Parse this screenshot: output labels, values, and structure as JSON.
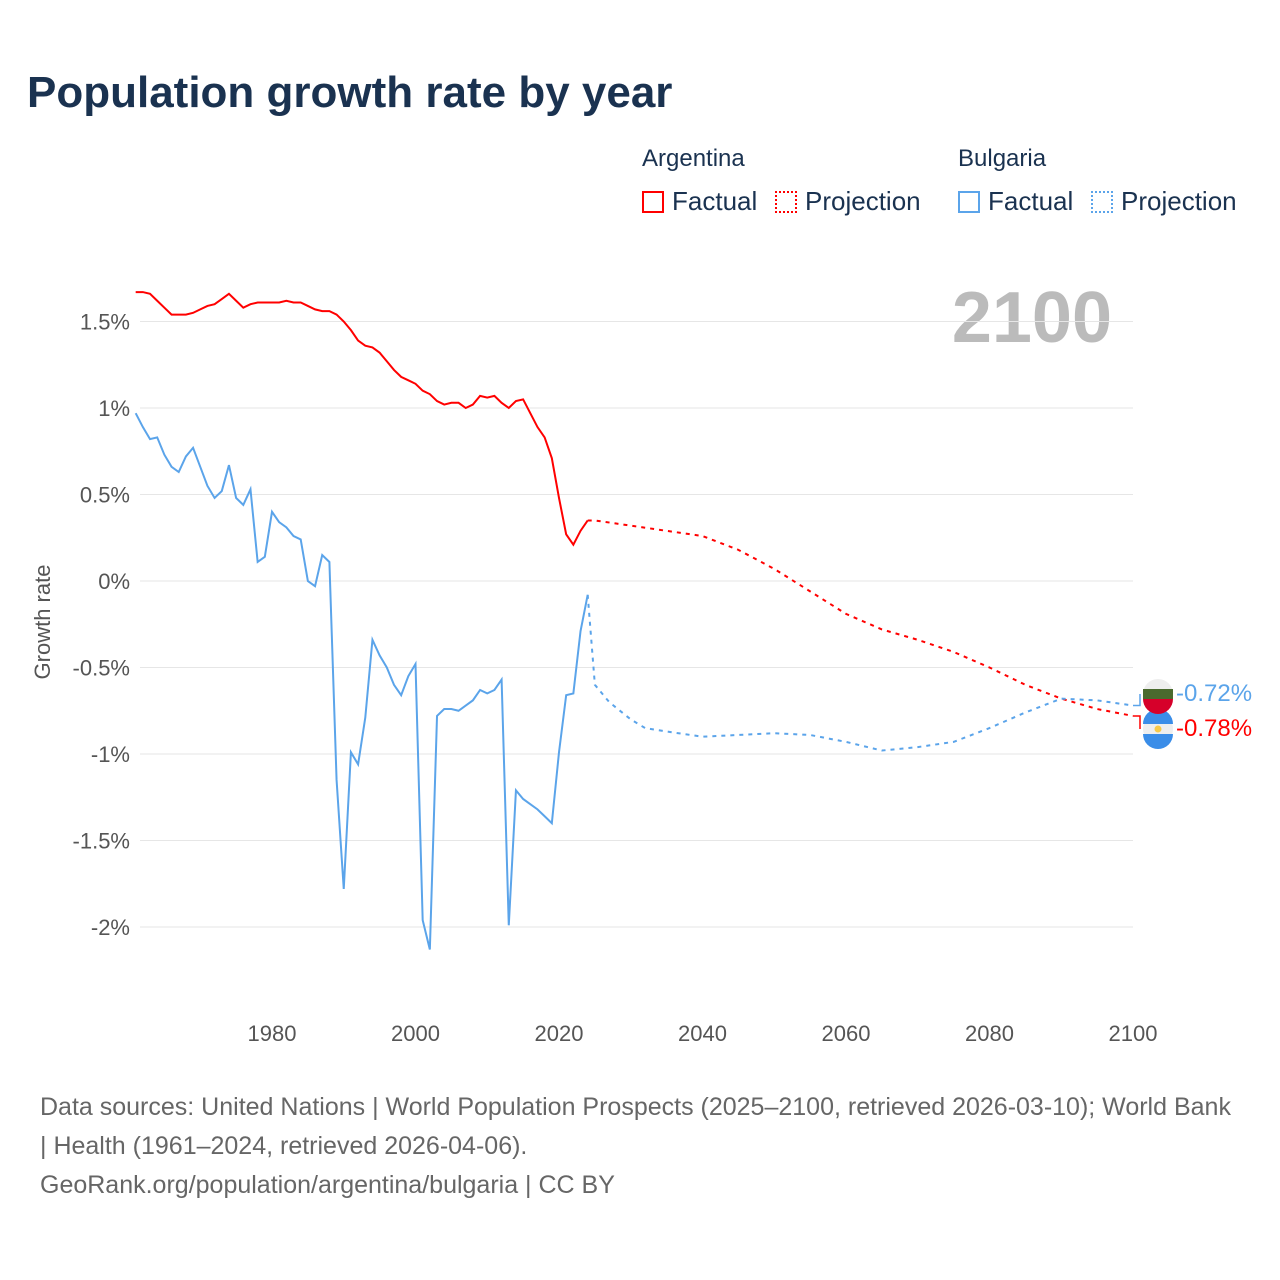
{
  "chart_data": {
    "type": "line",
    "title": "Population growth rate by year",
    "ylabel": "Growth rate",
    "xlabel": "",
    "xlim": [
      1961,
      2100
    ],
    "ylim": [
      -2.3,
      1.7
    ],
    "x_ticks": [
      {
        "v": 1980,
        "label": "1980"
      },
      {
        "v": 2000,
        "label": "2000"
      },
      {
        "v": 2020,
        "label": "2020"
      },
      {
        "v": 2040,
        "label": "2040"
      },
      {
        "v": 2060,
        "label": "2060"
      },
      {
        "v": 2080,
        "label": "2080"
      },
      {
        "v": 2100,
        "label": "2100"
      }
    ],
    "y_ticks": [
      {
        "v": 1.5,
        "label": "1.5%"
      },
      {
        "v": 1,
        "label": "1%"
      },
      {
        "v": 0.5,
        "label": "0.5%"
      },
      {
        "v": 0,
        "label": "0%"
      },
      {
        "v": -0.5,
        "label": "-0.5%"
      },
      {
        "v": -1,
        "label": "-1%"
      },
      {
        "v": -1.5,
        "label": "-1.5%"
      },
      {
        "v": -2,
        "label": "-2%"
      }
    ],
    "grid": true,
    "year_label": "2100",
    "legend": {
      "placement": "top-right",
      "groups": [
        {
          "name": "Argentina",
          "items": [
            "Factual",
            "Projection"
          ]
        },
        {
          "name": "Bulgaria",
          "items": [
            "Factual",
            "Projection"
          ]
        }
      ]
    },
    "series": [
      {
        "name": "Argentina",
        "color": "#ff0000",
        "end_label": "-0.78%",
        "factual": {
          "start": 1961,
          "values": [
            1.67,
            1.67,
            1.66,
            1.62,
            1.58,
            1.54,
            1.54,
            1.54,
            1.55,
            1.57,
            1.59,
            1.6,
            1.63,
            1.66,
            1.62,
            1.58,
            1.6,
            1.61,
            1.61,
            1.61,
            1.61,
            1.62,
            1.61,
            1.61,
            1.59,
            1.57,
            1.56,
            1.56,
            1.54,
            1.5,
            1.45,
            1.39,
            1.36,
            1.35,
            1.32,
            1.27,
            1.22,
            1.18,
            1.16,
            1.14,
            1.1,
            1.08,
            1.04,
            1.02,
            1.03,
            1.03,
            1.0,
            1.02,
            1.07,
            1.06,
            1.07,
            1.03,
            1.0,
            1.04,
            1.05,
            0.97,
            0.89,
            0.83,
            0.71,
            0.48,
            0.27,
            0.21,
            0.29,
            0.35
          ]
        },
        "projection": {
          "x": [
            2024,
            2025,
            2030,
            2035,
            2040,
            2045,
            2050,
            2055,
            2060,
            2065,
            2070,
            2075,
            2080,
            2085,
            2090,
            2095,
            2100
          ],
          "values": [
            0.35,
            0.35,
            0.32,
            0.29,
            0.26,
            0.18,
            0.07,
            -0.06,
            -0.19,
            -0.28,
            -0.34,
            -0.41,
            -0.5,
            -0.6,
            -0.68,
            -0.74,
            -0.78
          ]
        }
      },
      {
        "name": "Bulgaria",
        "color": "#5ba4ea",
        "end_label": "-0.72%",
        "factual": {
          "start": 1961,
          "values": [
            0.97,
            0.89,
            0.82,
            0.83,
            0.73,
            0.66,
            0.63,
            0.72,
            0.77,
            0.66,
            0.55,
            0.48,
            0.52,
            0.67,
            0.48,
            0.44,
            0.53,
            0.11,
            0.14,
            0.4,
            0.34,
            0.31,
            0.26,
            0.24,
            0.0,
            -0.03,
            0.15,
            0.11,
            -1.15,
            -1.78,
            -0.99,
            -1.06,
            -0.79,
            -0.34,
            -0.43,
            -0.5,
            -0.6,
            -0.66,
            -0.55,
            -0.48,
            -1.96,
            -2.13,
            -0.78,
            -0.74,
            -0.74,
            -0.75,
            -0.72,
            -0.69,
            -0.63,
            -0.65,
            -0.63,
            -0.57,
            -1.99,
            -1.21,
            -1.26,
            -1.29,
            -1.32,
            -1.36,
            -1.4,
            -0.99,
            -0.66,
            -0.65,
            -0.29,
            -0.08
          ]
        },
        "projection": {
          "x": [
            2024,
            2025,
            2027,
            2030,
            2032,
            2035,
            2040,
            2045,
            2050,
            2055,
            2060,
            2065,
            2070,
            2075,
            2080,
            2085,
            2090,
            2095,
            2100
          ],
          "values": [
            -0.08,
            -0.6,
            -0.7,
            -0.8,
            -0.85,
            -0.87,
            -0.9,
            -0.89,
            -0.88,
            -0.89,
            -0.93,
            -0.98,
            -0.96,
            -0.93,
            -0.85,
            -0.76,
            -0.68,
            -0.69,
            -0.72
          ]
        }
      }
    ]
  },
  "footer": {
    "sources": "Data sources: United Nations | World Population Prospects (2025–2100, retrieved 2026-03-10); World Bank | Health (1961–2024, retrieved 2026-04-06).",
    "credit": "GeoRank.org/population/argentina/bulgaria | CC BY"
  }
}
